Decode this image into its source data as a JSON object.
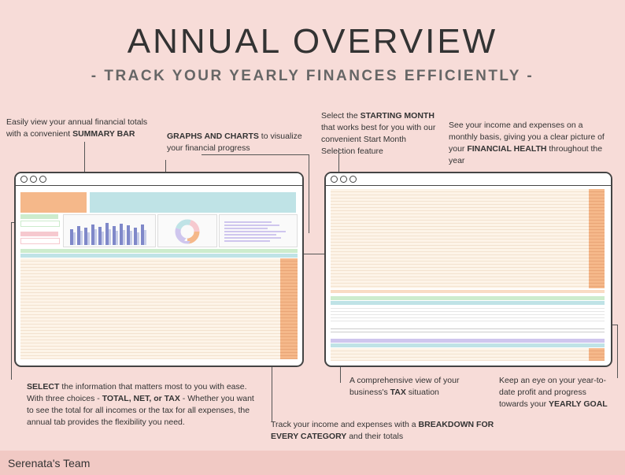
{
  "header": {
    "title": "ANNUAL OVERVIEW",
    "subtitle": "- TRACK YOUR YEARLY FINANCES EFFICIENTLY -"
  },
  "notes": {
    "summary_bar": {
      "pre": "Easily view your annual financial totals with a convenient ",
      "bold": "SUMMARY BAR"
    },
    "graphs": {
      "bold": "GRAPHS AND CHARTS",
      "post": " to visualize your financial progress"
    },
    "starting_month": {
      "pre": "Select the ",
      "bold": "STARTING MONTH",
      "post": " that works best for you with our convenient Start Month Selection feature"
    },
    "financial_health": {
      "pre": "See your income and expenses on a monthly basis, giving you a clear picture of your ",
      "bold": "FINANCIAL HEALTH",
      "post": " throughout the year"
    },
    "select": {
      "bold1": "SELECT",
      "mid1": " the information that matters most to you with ease. With three choices - ",
      "bold2": "TOTAL, NET, or TAX",
      "post": " - Whether you want to see the total for all incomes or the tax for all expenses, the annual tab provides the flexibility you need."
    },
    "tax": {
      "pre": "A comprehensive view of your business's ",
      "bold": "TAX",
      "post": " situation"
    },
    "breakdown": {
      "pre": "Track your income and expenses with a ",
      "bold": "BREAKDOWN FOR EVERY CATEGORY",
      "post": " and their totals"
    },
    "goal": {
      "pre": "Keep an eye on your year-to-date profit and progress towards your ",
      "bold": "YEARLY GOAL"
    }
  },
  "footer": {
    "brand": "Serenata's Team"
  },
  "colors": {
    "background": "#f7dcd8",
    "orange": "#f5b88a",
    "teal": "#bfe3e6",
    "green": "#cdeccd",
    "pink": "#f6c9cf",
    "purple": "#cfc6ee",
    "peach_col": "#f9dcc4"
  }
}
